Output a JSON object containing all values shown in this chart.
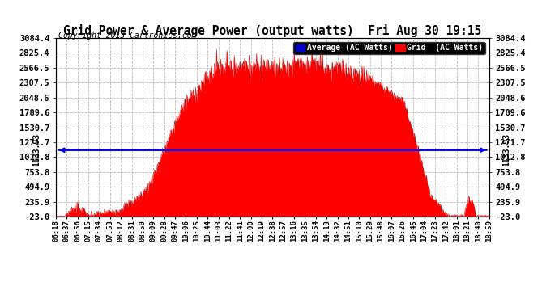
{
  "title": "Grid Power & Average Power (output watts)  Fri Aug 30 19:15",
  "copyright": "Copyright 2013 Cartronics.com",
  "yticks": [
    3084.4,
    2825.4,
    2566.5,
    2307.5,
    2048.6,
    1789.6,
    1530.7,
    1271.7,
    1012.8,
    753.8,
    494.9,
    235.9,
    -23.0
  ],
  "ymin": -23.0,
  "ymax": 3084.4,
  "average_value": 1133.93,
  "fill_color": "#ff0000",
  "line_color": "#cc0000",
  "avg_line_color": "#0000ff",
  "background_color": "#ffffff",
  "grid_color": "#bbbbbb",
  "xtick_labels": [
    "06:18",
    "06:37",
    "06:56",
    "07:15",
    "07:34",
    "07:53",
    "08:12",
    "08:31",
    "08:50",
    "09:09",
    "09:28",
    "09:47",
    "10:06",
    "10:25",
    "10:44",
    "11:03",
    "11:22",
    "11:41",
    "12:00",
    "12:19",
    "12:38",
    "12:57",
    "13:16",
    "13:35",
    "13:54",
    "14:13",
    "14:32",
    "14:51",
    "15:10",
    "15:29",
    "15:48",
    "16:07",
    "16:26",
    "16:45",
    "17:04",
    "17:23",
    "17:42",
    "18:01",
    "18:21",
    "18:40",
    "18:59"
  ],
  "n_xticks": 41
}
